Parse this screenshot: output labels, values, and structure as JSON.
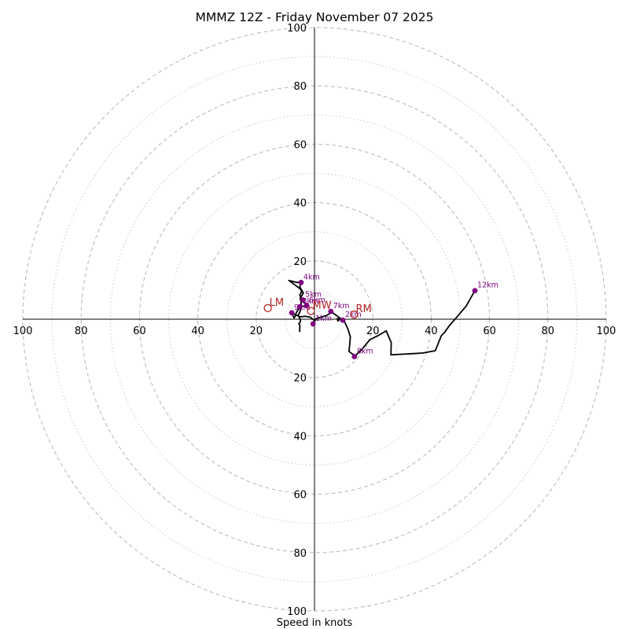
{
  "chart_data": {
    "type": "hodograph",
    "title": "MMMZ 12Z - Friday November 07 2025",
    "xlabel": "Speed in knots",
    "units": "knots",
    "axis_range": [
      -100,
      100
    ],
    "rings_dashed": [
      20,
      40,
      60,
      80,
      100
    ],
    "rings_dotted": [
      10,
      30,
      50,
      70,
      90
    ],
    "tick_values": [
      20,
      40,
      60,
      80,
      100
    ],
    "tick_labels": [
      "20",
      "40",
      "60",
      "80",
      "100"
    ],
    "colors": {
      "trace": "#000000",
      "height_marker": "#800080",
      "storm_motion": "#b22222",
      "ring": "#bbbbbb",
      "axis": "#000000"
    },
    "trace": [
      [
        -5.1,
        -4.2
      ],
      [
        -5.0,
        -2.0
      ],
      [
        -5.4,
        -1.5
      ],
      [
        -4.9,
        -1.0
      ],
      [
        -4.8,
        -0.3
      ],
      [
        -5.2,
        0.5
      ],
      [
        -5.5,
        1.5
      ],
      [
        -5.0,
        2.6
      ],
      [
        -4.5,
        4.0
      ],
      [
        -4.6,
        5.8
      ],
      [
        -4.9,
        7.2
      ],
      [
        -3.8,
        9.0
      ],
      [
        -5.0,
        11.0
      ],
      [
        -4.6,
        12.8
      ],
      [
        -6.0,
        12.6
      ],
      [
        -8.8,
        13.3
      ],
      [
        -5.0,
        10.5
      ],
      [
        -4.4,
        9.6
      ],
      [
        -5.0,
        8.2
      ],
      [
        -4.1,
        6.3
      ],
      [
        -2.5,
        4.7
      ],
      [
        -5.0,
        4.3
      ],
      [
        -6.2,
        2.3
      ],
      [
        -6.7,
        0.9
      ],
      [
        -7.0,
        0.4
      ],
      [
        -7.8,
        2.2
      ],
      [
        -5.0,
        0.8
      ],
      [
        -3.2,
        1.0
      ],
      [
        -1.5,
        0.7
      ],
      [
        0.0,
        -0.4
      ],
      [
        -0.5,
        -1.5
      ],
      [
        0.7,
        0.3
      ],
      [
        4.0,
        1.2
      ],
      [
        6.0,
        2.4
      ],
      [
        9.0,
        0.2
      ],
      [
        8.0,
        -0.6
      ],
      [
        7.8,
        0.2
      ],
      [
        10.0,
        -0.2
      ],
      [
        11.5,
        -3.5
      ],
      [
        12.3,
        -6.0
      ],
      [
        12.0,
        -9.5
      ],
      [
        11.8,
        -11.0
      ],
      [
        12.5,
        -11.6
      ],
      [
        14.0,
        -12.5
      ],
      [
        16.0,
        -10.6
      ],
      [
        19.0,
        -7.0
      ],
      [
        22.0,
        -5.5
      ],
      [
        24.6,
        -4.0
      ],
      [
        25.0,
        -5.0
      ],
      [
        26.3,
        -8.0
      ],
      [
        26.2,
        -12.2
      ],
      [
        30.0,
        -12.0
      ],
      [
        33.5,
        -11.8
      ],
      [
        37.0,
        -11.6
      ],
      [
        41.4,
        -10.8
      ],
      [
        43.5,
        -5.6
      ],
      [
        44.5,
        -4.6
      ],
      [
        46.0,
        -2.5
      ],
      [
        49.0,
        1.0
      ],
      [
        52.0,
        4.5
      ],
      [
        55.0,
        9.8
      ]
    ],
    "height_markers": [
      {
        "label": "1km",
        "u": -0.5,
        "v": -1.6
      },
      {
        "label": "2km",
        "u": 9.7,
        "v": -0.3
      },
      {
        "label": "3km",
        "u": -5.0,
        "v": 4.3
      },
      {
        "label": "4km",
        "u": -4.6,
        "v": 12.6
      },
      {
        "label": "5km",
        "u": -4.0,
        "v": 6.6
      },
      {
        "label": "6km",
        "u": -2.7,
        "v": 4.7
      },
      {
        "label": "7km",
        "u": 5.6,
        "v": 2.7
      },
      {
        "label": "8km",
        "u": 13.7,
        "v": -12.8
      },
      {
        "label": "9km",
        "u": -7.8,
        "v": 2.2
      },
      {
        "label": "12km",
        "u": 55.0,
        "v": 9.8
      }
    ],
    "storm_motions": [
      {
        "label": "LM",
        "u": -16.0,
        "v": 3.8
      },
      {
        "label": "MW",
        "u": -1.2,
        "v": 2.8
      },
      {
        "label": "RM",
        "u": 13.6,
        "v": 1.6
      }
    ]
  }
}
